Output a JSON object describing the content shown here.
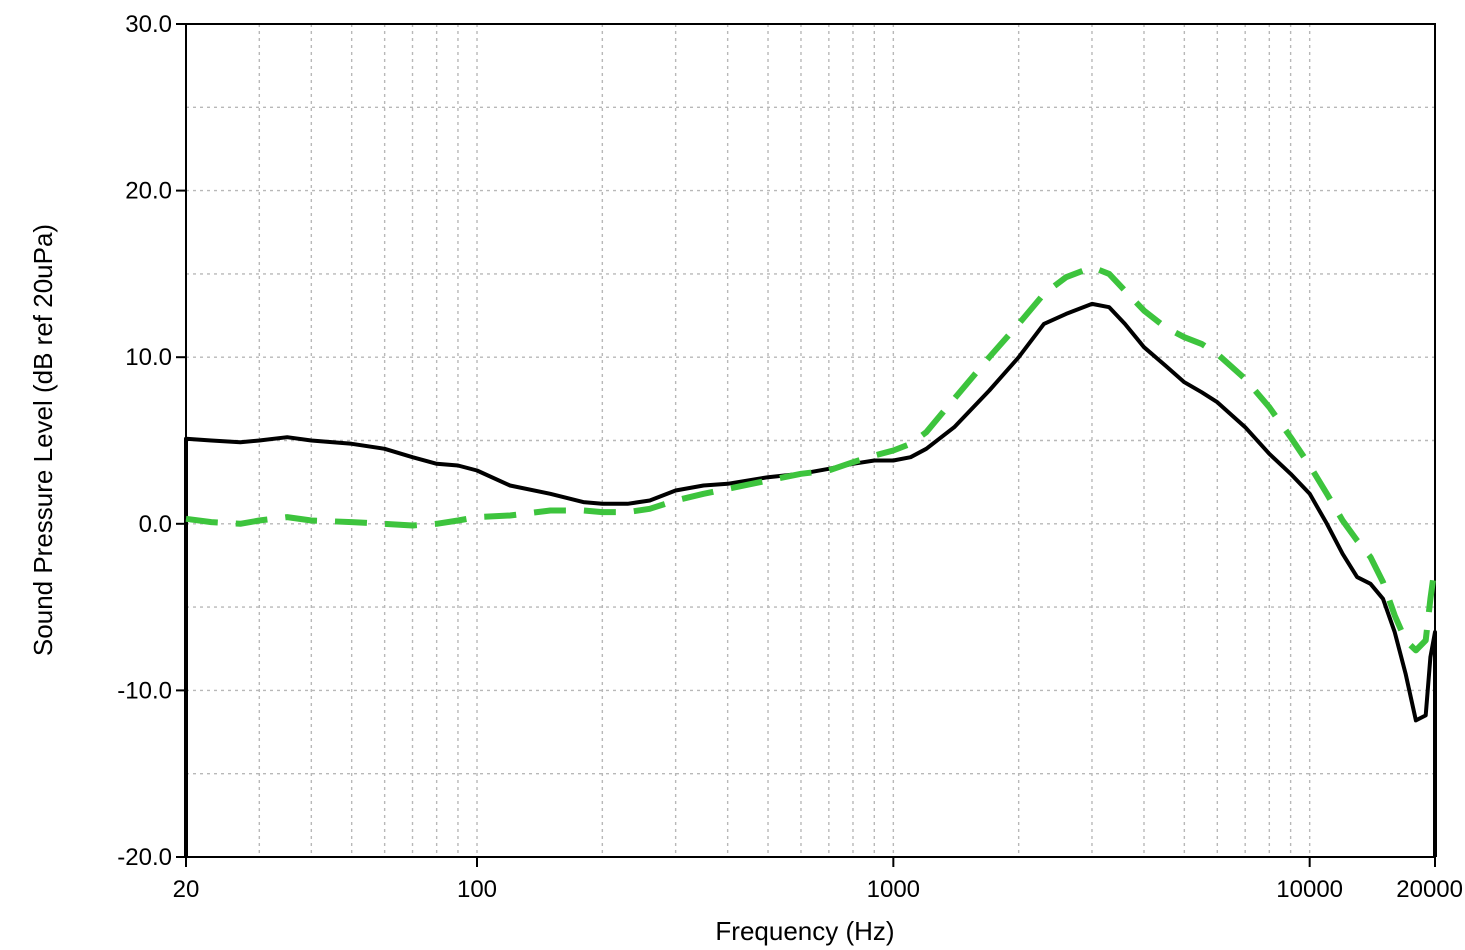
{
  "chart_data": {
    "type": "line",
    "xlabel": "Frequency (Hz)",
    "ylabel": "Sound Pressure Level (dB ref 20uPa)",
    "x_scale": "log",
    "xlim": [
      20,
      20000
    ],
    "ylim": [
      -20,
      30
    ],
    "grid": true,
    "x_tick_labels": [
      {
        "value": 20,
        "label": "20"
      },
      {
        "value": 100,
        "label": "100"
      },
      {
        "value": 1000,
        "label": "1000"
      },
      {
        "value": 10000,
        "label": "10000"
      },
      {
        "value": 20000,
        "label": "20000"
      }
    ],
    "y_tick_labels": [
      {
        "value": 30,
        "label": "30.0"
      },
      {
        "value": 20,
        "label": "20.0"
      },
      {
        "value": 10,
        "label": "10.0"
      },
      {
        "value": 0,
        "label": "0.0"
      },
      {
        "value": -10,
        "label": "-10.0"
      },
      {
        "value": -20,
        "label": "-20.0"
      }
    ],
    "series": [
      {
        "style": "solid",
        "color": "#000000",
        "x": [
          20,
          23,
          27,
          30,
          35,
          40,
          50,
          60,
          70,
          80,
          90,
          100,
          120,
          150,
          180,
          200,
          230,
          260,
          300,
          350,
          400,
          500,
          600,
          700,
          800,
          900,
          1000,
          1100,
          1200,
          1400,
          1700,
          2000,
          2300,
          2600,
          3000,
          3300,
          3600,
          4000,
          4500,
          5000,
          5500,
          6000,
          7000,
          8000,
          9000,
          10000,
          11000,
          12000,
          13000,
          14000,
          15000,
          16000,
          17000,
          18000,
          19000,
          19500,
          20000
        ],
        "y": [
          5.1,
          5.0,
          4.9,
          5.0,
          5.2,
          5.0,
          4.8,
          4.5,
          4.0,
          3.6,
          3.5,
          3.2,
          2.3,
          1.8,
          1.3,
          1.2,
          1.2,
          1.4,
          2.0,
          2.3,
          2.4,
          2.8,
          3.0,
          3.3,
          3.6,
          3.8,
          3.8,
          4.0,
          4.5,
          5.8,
          8.0,
          10.0,
          12.0,
          12.6,
          13.2,
          13.0,
          12.0,
          10.6,
          9.5,
          8.5,
          7.9,
          7.3,
          5.8,
          4.2,
          3.0,
          1.8,
          0.0,
          -1.8,
          -3.2,
          -3.6,
          -4.5,
          -6.5,
          -9.0,
          -11.8,
          -11.5,
          -8.0,
          -6.5
        ]
      },
      {
        "style": "dashed",
        "color": "#3dc43d",
        "x": [
          20,
          23,
          27,
          30,
          35,
          40,
          50,
          60,
          70,
          80,
          90,
          100,
          120,
          150,
          180,
          200,
          230,
          260,
          300,
          350,
          400,
          500,
          600,
          700,
          800,
          900,
          1000,
          1100,
          1200,
          1400,
          1700,
          2000,
          2300,
          2600,
          3000,
          3300,
          3600,
          4000,
          4500,
          5000,
          5500,
          6000,
          7000,
          8000,
          9000,
          10000,
          11000,
          12000,
          13000,
          14000,
          15000,
          16000,
          17000,
          18000,
          19000,
          19500,
          20000
        ],
        "y": [
          0.3,
          0.1,
          0.0,
          0.2,
          0.4,
          0.2,
          0.1,
          0.0,
          -0.1,
          0.0,
          0.2,
          0.4,
          0.5,
          0.8,
          0.8,
          0.7,
          0.7,
          0.9,
          1.4,
          1.8,
          2.1,
          2.6,
          3.0,
          3.2,
          3.7,
          4.1,
          4.4,
          4.8,
          5.5,
          7.5,
          10.0,
          12.0,
          13.8,
          14.8,
          15.4,
          15.0,
          14.0,
          12.8,
          11.8,
          11.2,
          10.8,
          10.2,
          8.7,
          7.0,
          5.2,
          3.5,
          1.8,
          0.2,
          -1.0,
          -2.0,
          -3.5,
          -5.5,
          -7.0,
          -7.6,
          -7.0,
          -4.5,
          -2.5
        ]
      }
    ]
  }
}
